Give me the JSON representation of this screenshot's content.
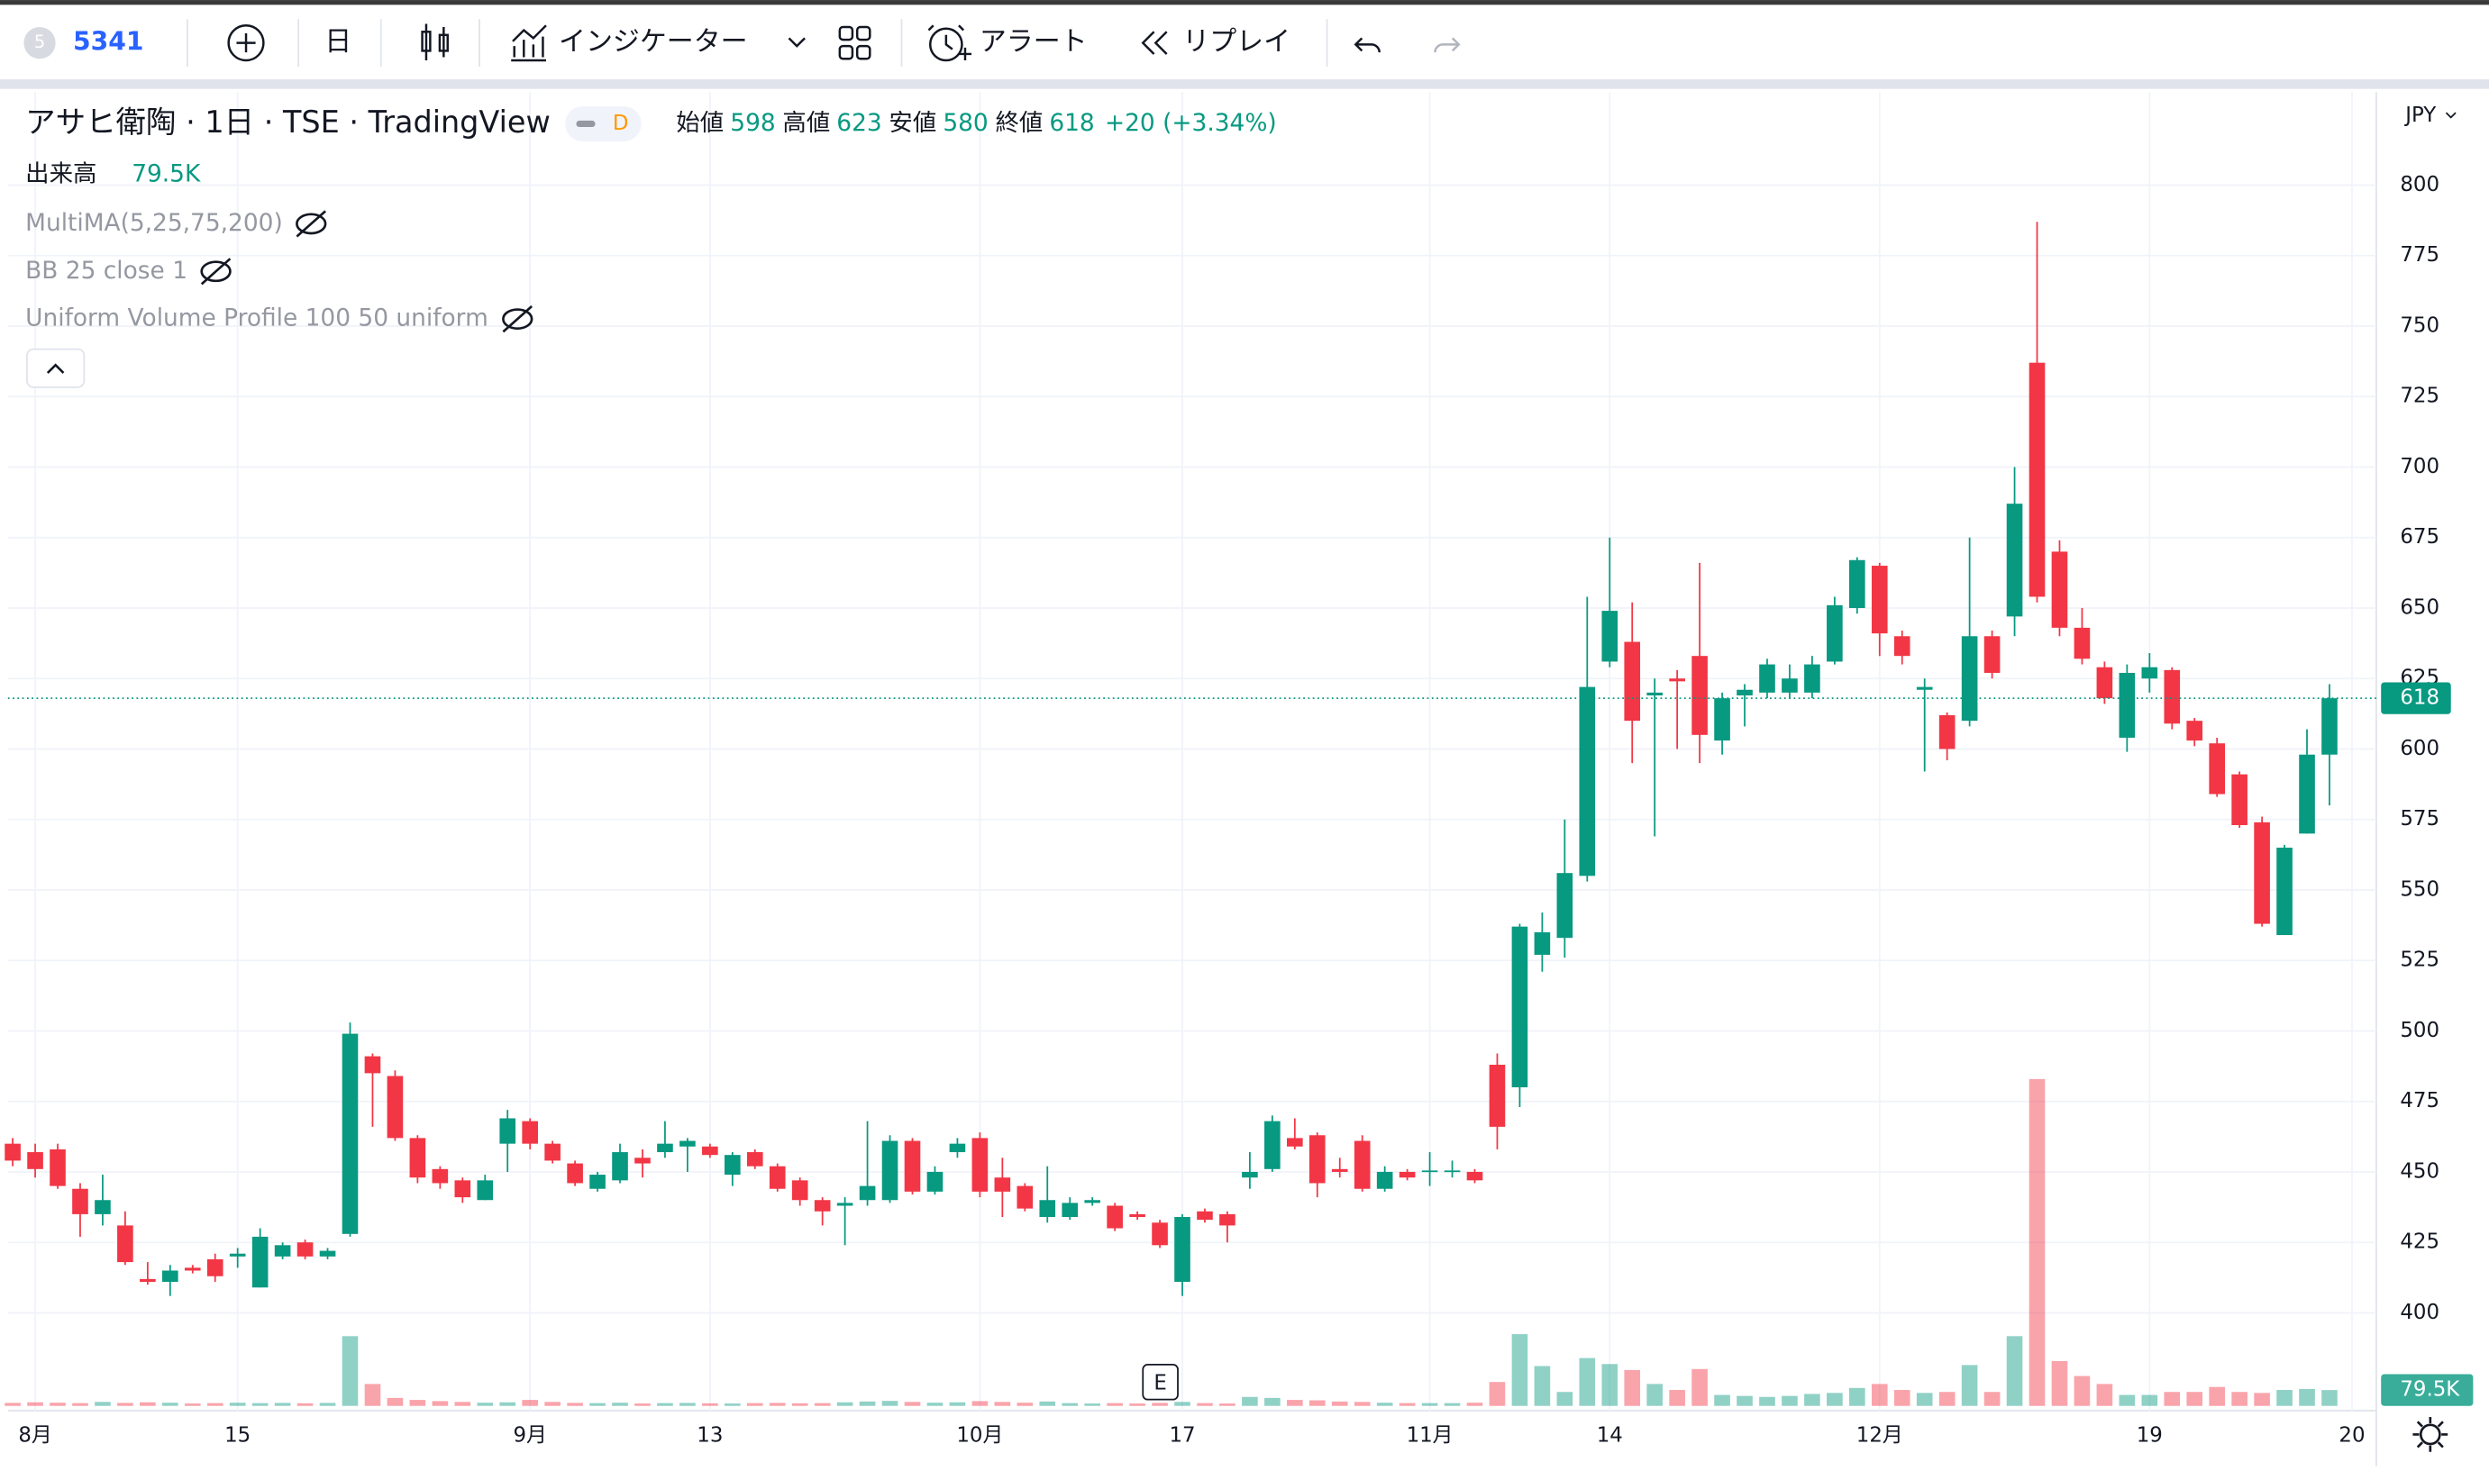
{
  "toolbar": {
    "symbol_icon": "5",
    "symbol": "5341",
    "interval": "日",
    "indicators": "インジケーター",
    "alert": "アラート",
    "replay": "リプレイ"
  },
  "chart_data": {
    "type": "candlestick",
    "title": "アサヒ衛陶 · 1日 · TSE · TradingView",
    "badge": "D",
    "ohlc_labels": [
      "始値",
      "高値",
      "安値",
      "終値"
    ],
    "change": "+20 (+3.34%)",
    "volume_name": "出来高",
    "volume_label": "79.5K",
    "indicators": [
      "MultiMA(5,25,75,200)",
      "BB 25 close 1",
      "Uniform Volume Profile 100 50 uniform"
    ],
    "currency": "JPY",
    "event_marker": "E",
    "categories": [
      null,
      "8月",
      null,
      null,
      null,
      null,
      null,
      null,
      null,
      null,
      "15",
      null,
      null,
      null,
      null,
      null,
      null,
      null,
      null,
      null,
      null,
      null,
      null,
      "9月",
      null,
      null,
      null,
      null,
      null,
      null,
      null,
      "13",
      null,
      null,
      null,
      null,
      null,
      null,
      null,
      null,
      null,
      null,
      null,
      "10月",
      null,
      null,
      null,
      null,
      null,
      null,
      null,
      null,
      "17",
      null,
      null,
      null,
      null,
      null,
      null,
      null,
      null,
      null,
      null,
      "11月",
      null,
      null,
      null,
      null,
      null,
      null,
      null,
      "14",
      null,
      null,
      null,
      null,
      null,
      null,
      null,
      null,
      null,
      null,
      null,
      "12月",
      null,
      null,
      null,
      null,
      null,
      null,
      null,
      null,
      null,
      null,
      null,
      "19",
      null,
      null,
      null,
      null,
      null,
      null,
      null,
      null,
      "20"
    ],
    "open": [
      460,
      457,
      458,
      444,
      435,
      431,
      412,
      411,
      416,
      419,
      420,
      409,
      420,
      425,
      420,
      428,
      491,
      484,
      462,
      451,
      447,
      440,
      460,
      468,
      460,
      453,
      444,
      447,
      455,
      457,
      459,
      459,
      449,
      457,
      452,
      447,
      440,
      438,
      440,
      440,
      461,
      443,
      457,
      462,
      448,
      445,
      434,
      434,
      439,
      438,
      435,
      432,
      411,
      436,
      435,
      448,
      451,
      462,
      463,
      451,
      461,
      444,
      450,
      450,
      450,
      450,
      488,
      480,
      527,
      533,
      555,
      631,
      638,
      619,
      625,
      633,
      603,
      619,
      620,
      620,
      620,
      631,
      650,
      665,
      640,
      621,
      612,
      610,
      640,
      647,
      737,
      670,
      643,
      629,
      604,
      625,
      628,
      610,
      602,
      591,
      574,
      534,
      570,
      598,
      null
    ],
    "high": [
      462,
      460,
      460,
      446,
      449,
      436,
      418,
      417,
      417,
      421,
      423,
      430,
      425,
      426,
      423,
      503,
      492,
      486,
      463,
      452,
      448,
      449,
      472,
      469,
      461,
      454,
      450,
      460,
      458,
      468,
      462,
      460,
      457,
      458,
      453,
      448,
      441,
      441,
      468,
      463,
      462,
      452,
      462,
      464,
      455,
      446,
      452,
      441,
      441,
      439,
      436,
      433,
      435,
      437,
      436,
      457,
      470,
      469,
      464,
      455,
      463,
      452,
      451,
      457,
      454,
      451,
      492,
      538,
      542,
      575,
      654,
      675,
      652,
      625,
      628,
      666,
      620,
      623,
      632,
      630,
      633,
      654,
      668,
      666,
      642,
      625,
      613,
      675,
      642,
      700,
      787,
      674,
      650,
      631,
      630,
      634,
      629,
      611,
      604,
      592,
      576,
      566,
      607,
      623,
      null
    ],
    "low": [
      452,
      448,
      444,
      427,
      431,
      417,
      410,
      406,
      414,
      411,
      416,
      409,
      419,
      419,
      419,
      427,
      466,
      461,
      446,
      444,
      439,
      440,
      450,
      458,
      453,
      445,
      443,
      446,
      448,
      455,
      450,
      455,
      445,
      451,
      443,
      438,
      431,
      424,
      438,
      439,
      442,
      442,
      455,
      441,
      434,
      436,
      432,
      433,
      438,
      429,
      433,
      423,
      406,
      432,
      425,
      444,
      450,
      458,
      441,
      448,
      443,
      443,
      447,
      445,
      448,
      446,
      458,
      473,
      521,
      526,
      553,
      629,
      595,
      569,
      600,
      595,
      598,
      608,
      618,
      618,
      618,
      630,
      648,
      633,
      630,
      592,
      596,
      608,
      625,
      640,
      652,
      640,
      630,
      616,
      599,
      620,
      607,
      601,
      583,
      572,
      537,
      534,
      570,
      580,
      null
    ],
    "close": [
      454,
      451,
      445,
      435,
      440,
      418,
      411,
      415,
      415,
      413,
      421,
      427,
      424,
      420,
      422,
      499,
      485,
      462,
      448,
      446,
      441,
      447,
      469,
      460,
      454,
      446,
      449,
      457,
      453,
      460,
      461,
      456,
      456,
      452,
      444,
      440,
      436,
      439,
      445,
      461,
      443,
      450,
      460,
      443,
      443,
      437,
      440,
      439,
      440,
      430,
      434,
      424,
      434,
      433,
      431,
      450,
      468,
      459,
      446,
      450,
      444,
      450,
      448,
      450.5,
      450.5,
      447,
      466,
      537,
      535,
      556,
      622,
      649,
      610,
      620,
      624,
      605,
      618,
      621,
      630,
      625,
      630,
      651,
      667,
      641,
      633,
      622,
      600,
      640,
      627,
      687,
      654,
      643,
      632,
      618,
      627,
      629,
      609,
      603,
      584,
      573,
      538,
      565,
      598,
      618,
      null
    ],
    "volume": [
      15,
      18,
      16,
      14,
      20,
      15,
      18,
      16,
      12,
      14,
      16,
      14,
      15,
      13,
      15,
      350,
      110,
      40,
      30,
      24,
      20,
      16,
      18,
      30,
      20,
      15,
      14,
      16,
      12,
      14,
      15,
      13,
      12,
      14,
      15,
      13,
      14,
      18,
      22,
      25,
      20,
      16,
      18,
      24,
      20,
      16,
      22,
      14,
      12,
      14,
      12,
      15,
      20,
      14,
      12,
      45,
      40,
      30,
      28,
      22,
      20,
      16,
      14,
      14,
      14,
      16,
      120,
      360,
      200,
      70,
      240,
      210,
      180,
      110,
      80,
      185,
      55,
      50,
      45,
      50,
      60,
      65,
      90,
      110,
      80,
      65,
      70,
      205,
      70,
      350,
      1640,
      225,
      150,
      110,
      55,
      55,
      70,
      70,
      95,
      70,
      65,
      80,
      85,
      79.5,
      null
    ],
    "up_color": "#089981",
    "down_color": "#f23645",
    "ylim": [
      367,
      833
    ],
    "yticks": [
      400,
      425,
      450,
      475,
      500,
      525,
      550,
      575,
      600,
      625,
      650,
      675,
      700,
      725,
      750,
      775,
      800
    ],
    "grid": true
  }
}
